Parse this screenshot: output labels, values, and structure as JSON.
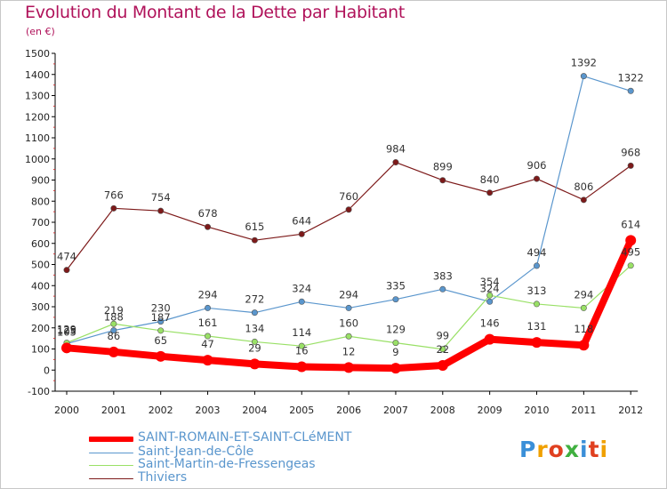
{
  "title": "Evolution du Montant de la Dette par Habitant",
  "unit": "(en €)",
  "logo": "Proxiti",
  "chart_data": {
    "type": "line",
    "ylim": [
      -100,
      1500
    ],
    "yticks": [
      -100,
      0,
      100,
      200,
      300,
      400,
      500,
      600,
      700,
      800,
      900,
      1000,
      1100,
      1200,
      1300,
      1400,
      1500
    ],
    "categories": [
      "2000",
      "2001",
      "2002",
      "2003",
      "2004",
      "2005",
      "2006",
      "2007",
      "2008",
      "2009",
      "2010",
      "2011",
      "2012"
    ],
    "grid": false,
    "legend_placement": "bottom-left",
    "series": [
      {
        "name": "SAINT-ROMAIN-ET-SAINT-CLéMENT",
        "color": "#ff0000",
        "values": [
          105,
          86,
          65,
          47,
          29,
          16,
          12,
          9,
          22,
          146,
          131,
          118,
          614
        ]
      },
      {
        "name": "Saint-Jean-de-Côle",
        "color": "#5a96cd",
        "values": [
          125,
          188,
          230,
          294,
          272,
          324,
          294,
          335,
          383,
          324,
          494,
          1392,
          1322
        ]
      },
      {
        "name": "Saint-Martin-de-Fressengeas",
        "color": "#99e066",
        "values": [
          129,
          219,
          187,
          161,
          134,
          114,
          160,
          129,
          99,
          354,
          313,
          294,
          495
        ]
      },
      {
        "name": "Thiviers",
        "color": "#7d1a1a",
        "values": [
          474,
          766,
          754,
          678,
          615,
          644,
          760,
          984,
          899,
          840,
          906,
          806,
          968
        ]
      }
    ]
  }
}
